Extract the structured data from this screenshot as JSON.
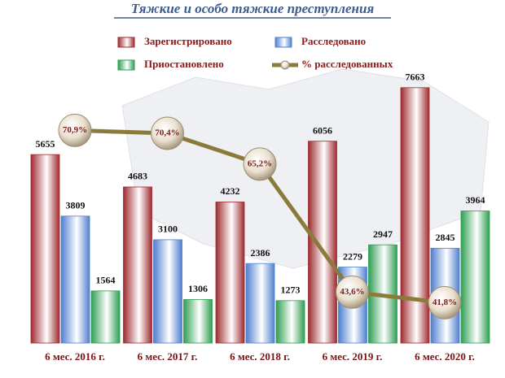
{
  "chart_data": {
    "type": "bar",
    "title": "Тяжкие и особо тяжкие преступления",
    "categories": [
      "6 мес. 2016 г.",
      "6 мес. 2017 г.",
      "6 мес. 2018 г.",
      "6 мес. 2019 г.",
      "6 мес. 2020 г."
    ],
    "ylim": [
      0,
      8000
    ],
    "y2lim": [
      35,
      80
    ],
    "series": [
      {
        "name": "Зарегистрировано",
        "color": "#9e2b2f",
        "values": [
          5655,
          4683,
          4232,
          6056,
          7663
        ]
      },
      {
        "name": "Расследовано",
        "color": "#4f7fcf",
        "values": [
          3809,
          3100,
          2386,
          2279,
          2845
        ]
      },
      {
        "name": "Приостановлено",
        "color": "#2f9e52",
        "values": [
          1564,
          1306,
          1273,
          2947,
          3964
        ]
      },
      {
        "name": "% расследованных",
        "type": "line",
        "axis": "y2",
        "color": "#8a7a3c",
        "values": [
          70.9,
          70.4,
          65.2,
          43.6,
          41.8
        ],
        "value_labels": [
          "70,9%",
          "70,4%",
          "65,2%",
          "43,6%",
          "41,8%"
        ]
      }
    ]
  }
}
